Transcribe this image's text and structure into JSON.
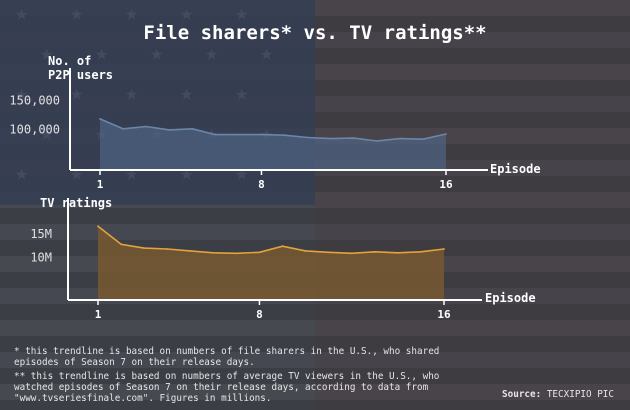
{
  "title": "File sharers* vs. TV ratings**",
  "colors": {
    "background": "#3a3d44",
    "sharers_line": "#6b86a8",
    "sharers_fill": "#4d6280",
    "ratings_line": "#e4a23c",
    "ratings_fill": "#7a5a2e",
    "axis": "#ffffff"
  },
  "notes": {
    "note1": "* this trendline is based on numbers of file sharers in the U.S., who shared episodes of Season 7 on their release days.",
    "note2": "** this trendline is based on numbers of average TV viewers in the U.S., who watched episodes of Season 7 on their release days, according to data from \"www.tvseriesfinale.com\". Figures in millions."
  },
  "source": {
    "label": "Source:",
    "value": "TECXIPIO PIC"
  },
  "chart_data": [
    {
      "type": "area",
      "ylabel_line1": "No. of",
      "ylabel_line2": "P2P users",
      "xlabel": "Episode",
      "x": [
        1,
        2,
        3,
        4,
        5,
        6,
        7,
        8,
        9,
        10,
        11,
        12,
        13,
        14,
        15,
        16
      ],
      "xticks": [
        1,
        8,
        16
      ],
      "xtick_labels": [
        "1",
        "8",
        "16"
      ],
      "yticks": [
        100000,
        150000
      ],
      "ytick_labels": [
        "100,000",
        "150,000"
      ],
      "ylim": [
        30000,
        185000
      ],
      "series": [
        {
          "values": [
            118000,
            101000,
            105000,
            99000,
            101000,
            91000,
            91000,
            91000,
            90000,
            86000,
            84000,
            85000,
            80000,
            84000,
            83000,
            92000
          ]
        }
      ]
    },
    {
      "type": "area",
      "ylabel": "TV ratings",
      "xlabel": "Episode",
      "x": [
        1,
        2,
        3,
        4,
        5,
        6,
        7,
        8,
        9,
        10,
        11,
        12,
        13,
        14,
        15,
        16
      ],
      "xticks": [
        1,
        8,
        16
      ],
      "xtick_labels": [
        "1",
        "8",
        "16"
      ],
      "yticks": [
        10,
        15
      ],
      "ytick_labels": [
        "10M",
        "15M"
      ],
      "ylim": [
        1,
        19
      ],
      "series": [
        {
          "values": [
            16.6,
            12.8,
            12.0,
            11.8,
            11.4,
            11.0,
            10.9,
            11.1,
            12.4,
            11.4,
            11.1,
            10.9,
            11.2,
            11.0,
            11.2,
            11.8
          ]
        }
      ]
    }
  ]
}
